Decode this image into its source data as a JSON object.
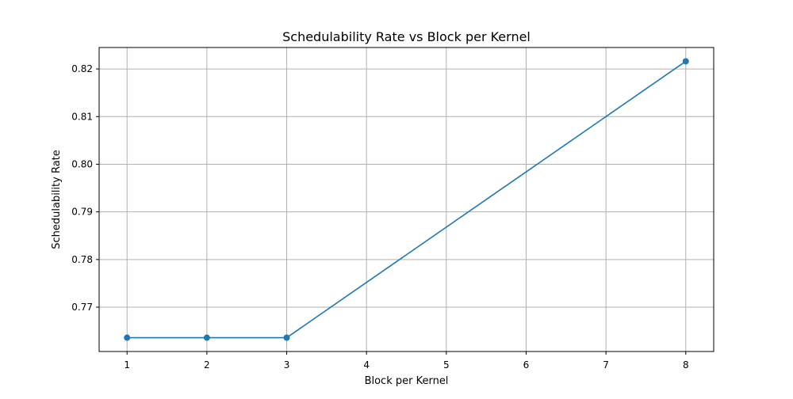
{
  "chart_data": {
    "type": "line",
    "title": "Schedulability Rate vs Block per Kernel",
    "xlabel": "Block per Kernel",
    "ylabel": "Schedulability Rate",
    "x": [
      1,
      2,
      3,
      8
    ],
    "series": [
      {
        "name": "",
        "values": [
          0.7636,
          0.7636,
          0.7636,
          0.8216
        ],
        "color": "#1f77b4",
        "marker": "circle"
      }
    ],
    "xticks": [
      1,
      2,
      3,
      4,
      5,
      6,
      7,
      8
    ],
    "yticks": [
      0.77,
      0.78,
      0.79,
      0.8,
      0.81,
      0.82
    ],
    "ytick_labels": [
      "0.77",
      "0.78",
      "0.79",
      "0.80",
      "0.81",
      "0.82"
    ],
    "xlim": [
      0.65,
      8.35
    ],
    "ylim": [
      0.7607,
      0.8245
    ],
    "grid": true,
    "legend": "none"
  }
}
